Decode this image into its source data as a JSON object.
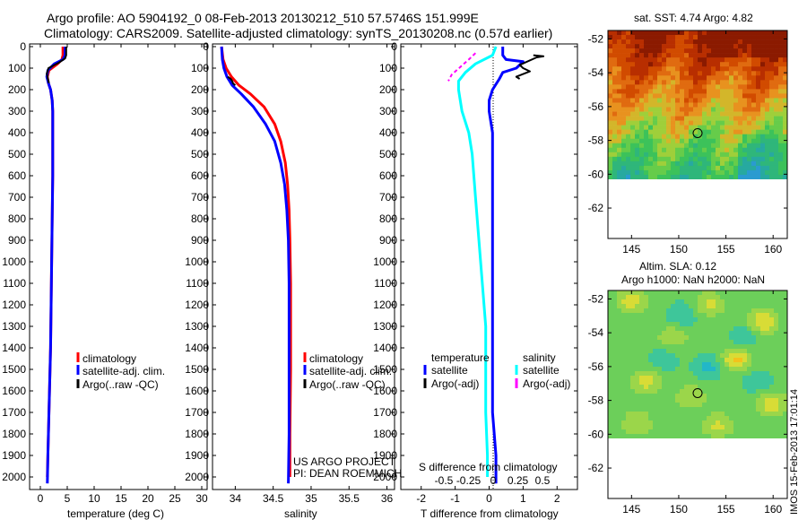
{
  "title_line1": "Argo profile: AO 5904192_0 08-Feb-2013 20130212_510 57.5746S 151.999E",
  "title_line2": "Climatology: CARS2009. Satellite-adjusted climatology: synTS_20130208.nc (0.57d earlier)",
  "side_stamp": "IMOS 15-Feb-2013 17:01:14",
  "colors": {
    "climatology": "#ff0000",
    "satellite": "#0000ff",
    "argo": "#000000",
    "sal_sat": "#00ffff",
    "sal_argo": "#ff00ff"
  },
  "chart_data": [
    {
      "type": "line",
      "id": "temperature",
      "xlabel": "temperature (deg C)",
      "ylabel": "",
      "xlim": [
        -2,
        31
      ],
      "ylim": [
        0,
        2060
      ],
      "y_reversed": true,
      "xticks": [
        0,
        5,
        10,
        15,
        20,
        25,
        30
      ],
      "yticks": [
        0,
        100,
        200,
        300,
        400,
        500,
        600,
        700,
        800,
        900,
        1000,
        1100,
        1200,
        1300,
        1400,
        1500,
        1600,
        1700,
        1800,
        1900,
        2000
      ],
      "legend": [
        "climatology",
        "satellite-adj. clim.",
        "Argo(..raw -QC)"
      ],
      "series": [
        {
          "name": "climatology",
          "color": "#ff0000",
          "x": [
            4.2,
            4.2,
            4.0,
            3.2,
            1.6,
            1.3,
            1.5,
            1.9,
            2.2,
            2.3,
            2.3,
            2.3,
            2.2,
            2.1,
            2.0,
            1.9,
            1.8,
            1.7,
            1.6,
            1.5,
            1.4,
            1.3
          ],
          "y": [
            0,
            40,
            60,
            80,
            110,
            140,
            170,
            200,
            250,
            300,
            400,
            600,
            800,
            1000,
            1200,
            1400,
            1500,
            1600,
            1700,
            1800,
            1900,
            2000
          ]
        },
        {
          "name": "satellite-adj. clim.",
          "color": "#0000ff",
          "x": [
            4.6,
            4.6,
            4.2,
            2.6,
            1.4,
            1.2,
            1.5,
            1.9,
            2.2,
            2.3,
            2.3,
            2.3,
            2.2,
            2.1,
            2.0,
            1.9,
            1.8,
            1.7,
            1.6,
            1.5,
            1.4,
            1.3
          ],
          "y": [
            0,
            40,
            60,
            80,
            110,
            140,
            170,
            200,
            250,
            300,
            400,
            600,
            800,
            1000,
            1200,
            1400,
            1500,
            1600,
            1700,
            1800,
            1900,
            2030
          ]
        },
        {
          "name": "Argo(..raw -QC)",
          "color": "#000000",
          "x": [
            4.8,
            4.8,
            4.6,
            3.4,
            1.5,
            1.2,
            1.4,
            1.6
          ],
          "y": [
            0,
            40,
            55,
            75,
            100,
            125,
            150,
            170
          ]
        }
      ]
    },
    {
      "type": "line",
      "id": "salinity",
      "xlabel": "salinity",
      "ylabel": "",
      "xlim": [
        33.7,
        36.1
      ],
      "ylim": [
        0,
        2060
      ],
      "y_reversed": true,
      "xticks": [
        34,
        34.5,
        35,
        35.5,
        36
      ],
      "legend": [
        "climatology",
        "satellite-adj. clim.",
        "Argo(..raw -QC)"
      ],
      "annotation": [
        "US ARGO PROJECT",
        "PI: DEAN ROEMMICH"
      ],
      "series": [
        {
          "name": "climatology",
          "color": "#ff0000",
          "x": [
            33.82,
            33.84,
            33.88,
            33.95,
            34.05,
            34.2,
            34.38,
            34.52,
            34.6,
            34.66,
            34.69,
            34.71,
            34.72,
            34.73,
            34.73,
            34.73,
            34.72,
            34.72
          ],
          "y": [
            0,
            60,
            100,
            140,
            180,
            220,
            280,
            360,
            440,
            540,
            640,
            760,
            900,
            1100,
            1300,
            1500,
            1800,
            2000
          ]
        },
        {
          "name": "satellite-adj. clim.",
          "color": "#0000ff",
          "x": [
            33.82,
            33.83,
            33.85,
            33.89,
            33.96,
            34.08,
            34.24,
            34.4,
            34.52,
            34.6,
            34.65,
            34.68,
            34.7,
            34.71,
            34.71,
            34.71,
            34.71,
            34.7
          ],
          "y": [
            0,
            60,
            100,
            140,
            180,
            220,
            280,
            360,
            440,
            540,
            640,
            760,
            900,
            1100,
            1300,
            1500,
            1800,
            2030
          ]
        },
        {
          "name": "Argo(..raw -QC)",
          "color": "#000000",
          "x": [
            33.9,
            33.94,
            33.96,
            33.97,
            34.0
          ],
          "y": [
            140,
            150,
            160,
            170,
            180
          ]
        }
      ]
    },
    {
      "type": "line",
      "id": "difference",
      "xlabel": "T difference from climatology",
      "xlabel_top": "S difference from climatology",
      "xlim": [
        -2.6,
        2.6
      ],
      "ylim": [
        0,
        2060
      ],
      "y_reversed": true,
      "xticks": [
        -2,
        -1,
        0,
        1,
        2
      ],
      "xticks_s": [
        -0.5,
        -0.25,
        0,
        0.25,
        0.5
      ],
      "legend_t_title": "temperature",
      "legend_s_title": "salinity",
      "legend_t": [
        "satellite",
        "Argo(-adj)"
      ],
      "legend_s": [
        "satellite",
        "Argo(-adj)"
      ],
      "series": [
        {
          "name": "temperature satellite",
          "color": "#0000ff",
          "x": [
            0.4,
            0.4,
            0.5,
            1.0,
            0.8,
            0.4,
            0.3,
            0.1,
            0.0,
            0.0,
            0.1,
            0.1,
            0.1,
            0.1,
            0.1,
            0.1,
            0.1,
            0.2,
            0.2
          ],
          "y": [
            0,
            40,
            60,
            70,
            100,
            120,
            150,
            200,
            250,
            300,
            400,
            600,
            800,
            1000,
            1200,
            1500,
            1700,
            1900,
            2030
          ]
        },
        {
          "name": "salinity satellite",
          "color": "#00ffff",
          "x": [
            0.2,
            0.1,
            -0.4,
            -0.7,
            -0.9,
            -0.9,
            -0.8,
            -0.6,
            -0.5,
            -0.4,
            -0.3,
            -0.2,
            -0.1,
            -0.1,
            -0.1,
            -0.05,
            -0.05
          ],
          "y": [
            0,
            40,
            80,
            120,
            160,
            200,
            300,
            400,
            500,
            700,
            900,
            1100,
            1300,
            1500,
            1700,
            1900,
            2000
          ]
        },
        {
          "name": "temperature Argo(-adj)",
          "color": "#000000",
          "x": [
            1.3,
            1.6,
            1.4,
            0.9,
            1.0,
            1.2,
            0.8,
            0.9
          ],
          "y": [
            40,
            45,
            50,
            85,
            100,
            115,
            140,
            150
          ]
        },
        {
          "name": "salinity Argo(-adj)",
          "color": "#ff00ff",
          "x": [
            -0.4,
            -0.6,
            -1.1,
            -1.2
          ],
          "y": [
            30,
            60,
            130,
            160
          ]
        }
      ]
    },
    {
      "type": "heatmap",
      "id": "sst-map",
      "title": "sat. SST: 4.74 Argo: 4.82",
      "xticks": [
        145,
        150,
        155,
        160
      ],
      "yticks": [
        -52,
        -54,
        -56,
        -58,
        -60,
        -62
      ],
      "xlim": [
        142.5,
        161.5
      ],
      "ylim": [
        -63.8,
        -51.5
      ],
      "marker": {
        "x": 152,
        "y": -57.57
      }
    },
    {
      "type": "heatmap",
      "id": "sla-map",
      "title_line1": "Altim. SLA: 0.12",
      "title_line2": "Argo h1000: NaN h2000: NaN",
      "xticks": [
        145,
        150,
        155,
        160
      ],
      "yticks": [
        -52,
        -54,
        -56,
        -58,
        -60,
        -62
      ],
      "xlim": [
        142.5,
        161.5
      ],
      "ylim": [
        -63.8,
        -51.5
      ],
      "marker": {
        "x": 152,
        "y": -57.57
      }
    }
  ]
}
